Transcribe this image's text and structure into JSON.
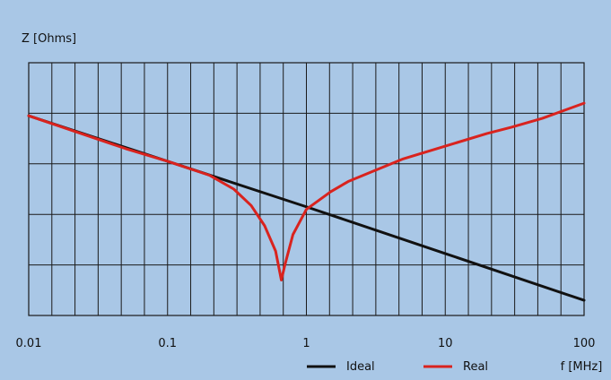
{
  "colors": {
    "background": "#a9c7e6",
    "grid": "#1a1a1a",
    "ideal": "#111111",
    "real": "#d9231e"
  },
  "chart_data": {
    "type": "line",
    "title": "",
    "ylabel": "Z [Ohms]",
    "xlabel": "f [MHz]",
    "x_scale": "log",
    "x_ticks": [
      "0.01",
      "0.1",
      "1",
      "10",
      "100"
    ],
    "xlim": [
      0.01,
      100
    ],
    "y_tick_labels": [],
    "grid": true,
    "legend_position": "bottom-right",
    "series": [
      {
        "name": "Ideal",
        "color": "#111111",
        "x": [
          0.01,
          0.1,
          1,
          10,
          100
        ],
        "y": [
          0.79,
          0.61,
          0.43,
          0.245,
          0.06
        ]
      },
      {
        "name": "Real",
        "color": "#d9231e",
        "x": [
          0.01,
          0.05,
          0.1,
          0.2,
          0.3,
          0.4,
          0.5,
          0.6,
          0.66,
          0.7,
          0.8,
          1,
          1.5,
          2,
          3,
          5,
          10,
          20,
          30,
          50,
          100
        ],
        "y": [
          0.79,
          0.66,
          0.61,
          0.555,
          0.5,
          0.435,
          0.355,
          0.255,
          0.14,
          0.2,
          0.32,
          0.42,
          0.49,
          0.53,
          0.57,
          0.62,
          0.67,
          0.72,
          0.745,
          0.78,
          0.84
        ]
      }
    ]
  }
}
